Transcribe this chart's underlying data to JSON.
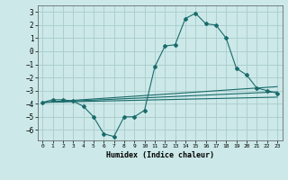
{
  "xlabel": "Humidex (Indice chaleur)",
  "background_color": "#cce8e8",
  "grid_color": "#aacccc",
  "line_color": "#1a6b6b",
  "xlim": [
    -0.5,
    23.5
  ],
  "ylim": [
    -6.8,
    3.5
  ],
  "yticks": [
    -6,
    -5,
    -4,
    -3,
    -2,
    -1,
    0,
    1,
    2,
    3
  ],
  "xticks": [
    0,
    1,
    2,
    3,
    4,
    5,
    6,
    7,
    8,
    9,
    10,
    11,
    12,
    13,
    14,
    15,
    16,
    17,
    18,
    19,
    20,
    21,
    22,
    23
  ],
  "line1_x": [
    0,
    1,
    2,
    3,
    4,
    5,
    6,
    7,
    8,
    9,
    10,
    11,
    12,
    13,
    14,
    15,
    16,
    17,
    18,
    19,
    20,
    21,
    22,
    23
  ],
  "line1_y": [
    -3.9,
    -3.7,
    -3.7,
    -3.8,
    -4.2,
    -5.0,
    -6.3,
    -6.5,
    -5.0,
    -5.0,
    -4.5,
    -1.2,
    0.4,
    0.5,
    2.5,
    2.9,
    2.1,
    2.0,
    1.0,
    -1.3,
    -1.8,
    -2.8,
    -3.0,
    -3.2
  ],
  "line2_x": [
    0,
    23
  ],
  "line2_y": [
    -3.9,
    -3.1
  ],
  "line3_x": [
    0,
    23
  ],
  "line3_y": [
    -3.9,
    -2.7
  ],
  "line4_x": [
    0,
    23
  ],
  "line4_y": [
    -3.9,
    -3.5
  ]
}
